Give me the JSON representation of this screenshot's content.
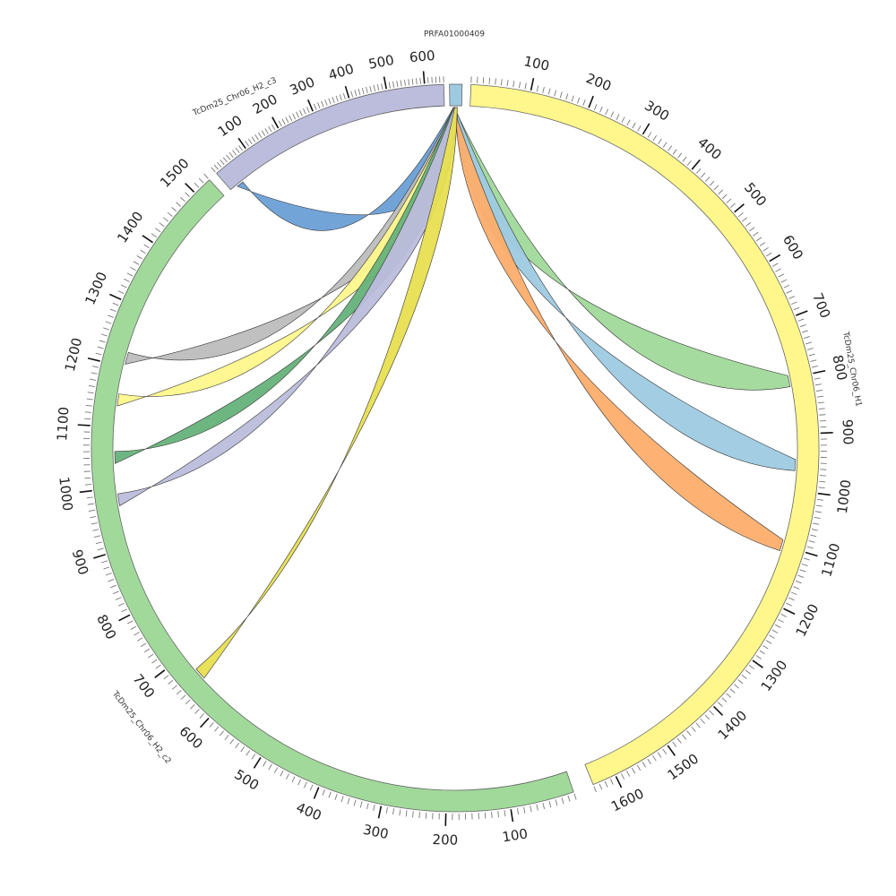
{
  "chart_data": {
    "type": "chord",
    "chromosomes": [
      {
        "id": "PRFA01000409",
        "label": "PRFA01000409",
        "length": 20,
        "color": "#9ecae1",
        "tick_labels": []
      },
      {
        "id": "H1",
        "label": "TcDm25_Chr06_H1",
        "length": 1640,
        "color": "#fff78c",
        "tick_labels": [
          "100",
          "200",
          "300",
          "400",
          "500",
          "600",
          "700",
          "800",
          "900",
          "1000",
          "1100",
          "1200",
          "1300",
          "1400",
          "1500",
          "1600"
        ]
      },
      {
        "id": "H2_c2",
        "label": "TcDm25_Chr06_H2_c2",
        "length": 1530,
        "color": "#a1d99b",
        "tick_labels": [
          "100",
          "200",
          "300",
          "400",
          "500",
          "600",
          "700",
          "800",
          "900",
          "1000",
          "1100",
          "1200",
          "1300",
          "1400",
          "1500"
        ]
      },
      {
        "id": "H2_c3",
        "label": "TcDm25_Chr06_H2_c3",
        "length": 650,
        "color": "#bcbddc",
        "tick_labels": [
          "100",
          "200",
          "300",
          "400",
          "500",
          "600"
        ]
      }
    ],
    "links": [
      {
        "target": "H2_c3",
        "start": 20,
        "end": 40,
        "color": "#6a9fd6"
      },
      {
        "target": "H1",
        "start": 795,
        "end": 815,
        "color": "#a1d99b"
      },
      {
        "target": "H1",
        "start": 945,
        "end": 965,
        "color": "#9ecae1"
      },
      {
        "target": "H1",
        "start": 1090,
        "end": 1110,
        "color": "#fdae6b"
      },
      {
        "target": "H2_c2",
        "start": 1205,
        "end": 1225,
        "color": "#bdbdbd"
      },
      {
        "target": "H2_c2",
        "start": 1135,
        "end": 1155,
        "color": "#fff78c"
      },
      {
        "target": "H2_c2",
        "start": 1040,
        "end": 1060,
        "color": "#66b27a"
      },
      {
        "target": "H2_c2",
        "start": 970,
        "end": 990,
        "color": "#bcbddc"
      },
      {
        "target": "H2_c2",
        "start": 650,
        "end": 670,
        "color": "#e7df50"
      }
    ]
  }
}
